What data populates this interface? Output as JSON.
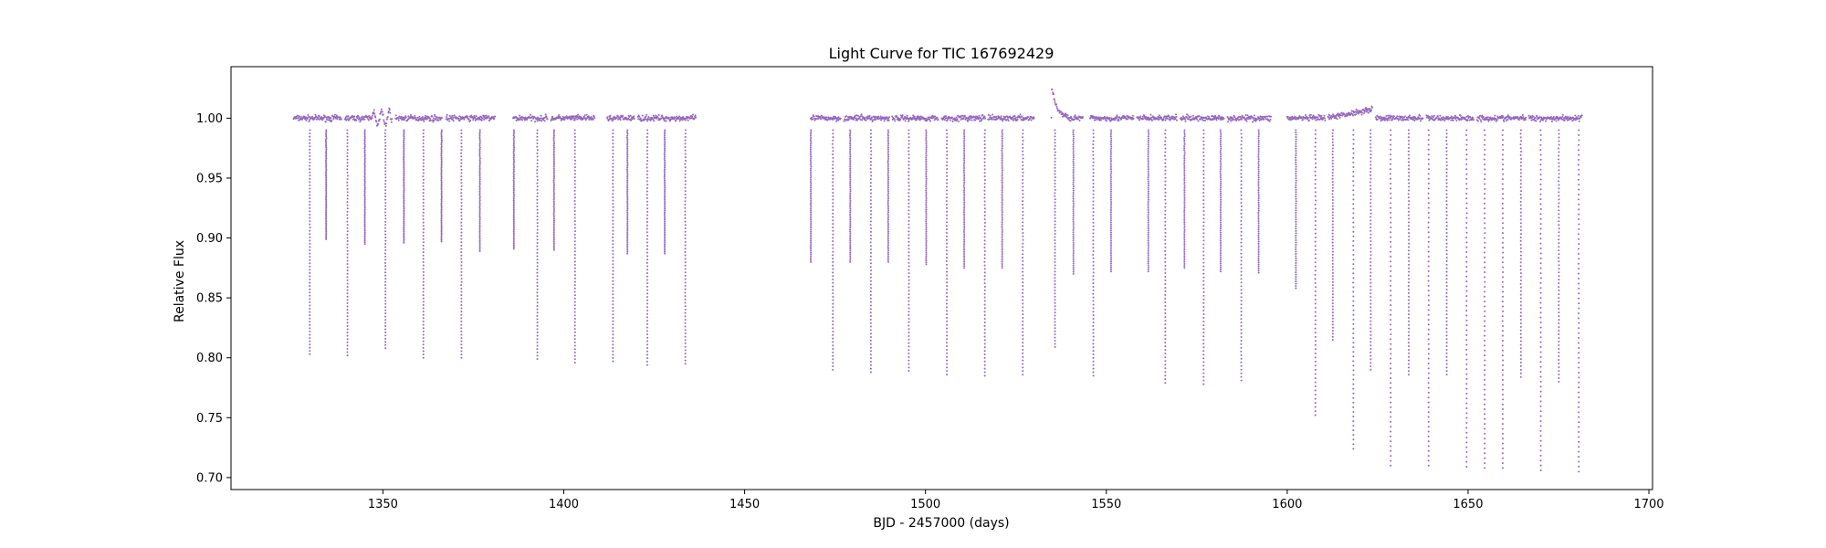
{
  "chart_data": {
    "type": "scatter",
    "title": "Light Curve for TIC 167692429",
    "xlabel": "BJD - 2457000 (days)",
    "ylabel": "Relative Flux",
    "xlim": [
      1308,
      1701
    ],
    "ylim": [
      0.69,
      1.043
    ],
    "xticks": [
      1350,
      1400,
      1450,
      1500,
      1550,
      1600,
      1650,
      1700
    ],
    "yticks": [
      0.7,
      0.75,
      0.8,
      0.85,
      0.9,
      0.95,
      1.0
    ],
    "xtick_labels": [
      "1350",
      "1400",
      "1450",
      "1500",
      "1550",
      "1600",
      "1650",
      "1700"
    ],
    "ytick_labels": [
      "0.70",
      "0.75",
      "0.80",
      "0.85",
      "0.90",
      "0.95",
      "1.00"
    ],
    "grid": false,
    "legend": "none",
    "marker_color": "#9467bd",
    "series": [
      {
        "segments": [
          [
            1325.3,
            1338.5
          ],
          [
            1339.5,
            1352.5
          ],
          [
            1353.5,
            1366.3
          ],
          [
            1367.5,
            1381.0
          ],
          [
            1386.0,
            1395.5
          ],
          [
            1396.5,
            1408.5
          ],
          [
            1412.0,
            1419.5
          ],
          [
            1420.5,
            1436.5
          ],
          [
            1468.3,
            1476.5
          ],
          [
            1477.5,
            1490.0
          ],
          [
            1490.8,
            1503.5
          ],
          [
            1504.5,
            1516.5
          ],
          [
            1517.3,
            1530.0
          ],
          [
            1534.8,
            1543.5
          ],
          [
            1545.5,
            1557.5
          ],
          [
            1558.5,
            1569.5
          ],
          [
            1570.5,
            1582.5
          ],
          [
            1583.5,
            1595.5
          ],
          [
            1600.0,
            1610.5
          ],
          [
            1611.3,
            1623.5
          ],
          [
            1624.5,
            1637.5
          ],
          [
            1638.5,
            1651.5
          ],
          [
            1652.5,
            1666.0
          ],
          [
            1666.8,
            1681.5
          ]
        ],
        "dips": [
          [
            1329.8,
            0.803
          ],
          [
            1334.3,
            0.899
          ],
          [
            1340.2,
            0.802
          ],
          [
            1345.0,
            0.895
          ],
          [
            1350.7,
            0.808
          ],
          [
            1355.8,
            0.896
          ],
          [
            1361.2,
            0.8
          ],
          [
            1366.2,
            0.897
          ],
          [
            1371.7,
            0.8
          ],
          [
            1376.8,
            0.889
          ],
          [
            1386.2,
            0.891
          ],
          [
            1392.7,
            0.799
          ],
          [
            1397.3,
            0.89
          ],
          [
            1403.1,
            0.796
          ],
          [
            1413.6,
            0.797
          ],
          [
            1417.6,
            0.887
          ],
          [
            1423.1,
            0.794
          ],
          [
            1427.9,
            0.887
          ],
          [
            1433.6,
            0.795
          ],
          [
            1468.3,
            0.88
          ],
          [
            1474.4,
            0.79
          ],
          [
            1479.2,
            0.88
          ],
          [
            1484.9,
            0.788
          ],
          [
            1489.7,
            0.88
          ],
          [
            1495.4,
            0.789
          ],
          [
            1500.2,
            0.878
          ],
          [
            1505.9,
            0.786
          ],
          [
            1510.7,
            0.875
          ],
          [
            1516.4,
            0.785
          ],
          [
            1521.2,
            0.875
          ],
          [
            1526.9,
            0.786
          ],
          [
            1535.8,
            0.809
          ],
          [
            1540.9,
            0.87
          ],
          [
            1546.4,
            0.785
          ],
          [
            1551.3,
            0.872
          ],
          [
            1561.6,
            0.872
          ],
          [
            1566.3,
            0.779
          ],
          [
            1571.6,
            0.875
          ],
          [
            1576.9,
            0.778
          ],
          [
            1581.6,
            0.872
          ],
          [
            1587.3,
            0.781
          ],
          [
            1592.1,
            0.871
          ],
          [
            1602.4,
            0.858
          ],
          [
            1607.8,
            0.752
          ],
          [
            1612.6,
            0.815
          ],
          [
            1618.3,
            0.724
          ],
          [
            1623.1,
            0.79
          ],
          [
            1628.6,
            0.71
          ],
          [
            1633.6,
            0.786
          ],
          [
            1639.1,
            0.71
          ],
          [
            1644.1,
            0.786
          ],
          [
            1649.6,
            0.709
          ],
          [
            1654.6,
            0.708
          ],
          [
            1659.6,
            0.708
          ],
          [
            1664.6,
            0.784
          ],
          [
            1670.1,
            0.706
          ],
          [
            1675.1,
            0.78
          ],
          [
            1680.6,
            0.705
          ]
        ]
      }
    ]
  }
}
